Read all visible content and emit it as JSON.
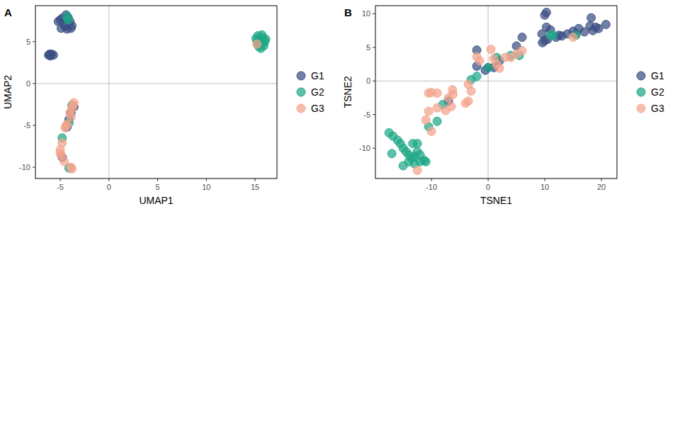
{
  "chart_data": [
    {
      "type": "scatter",
      "panel": "A",
      "x_label": "UMAP1",
      "y_label": "UMAP2",
      "xlim": [
        -7.55,
        17.25
      ],
      "ylim": [
        -11.35,
        9.3
      ],
      "xticks": [
        -5,
        0,
        5,
        10,
        15
      ],
      "yticks": [
        -10,
        -5,
        0,
        5
      ],
      "vline": 0,
      "hline": 0,
      "grid": false,
      "legend": "right",
      "marker": "circle",
      "series": [
        {
          "name": "G1",
          "color": "#3b4f84",
          "x": [
            -5.0,
            -4.8,
            -4.4,
            -4.2,
            -4.6,
            -4.9,
            -4.3,
            -3.9,
            -3.8,
            -4.0,
            -4.5,
            -5.2,
            -6.2,
            -5.9,
            -6.0,
            -5.7,
            -6.1,
            -3.6,
            -4.1,
            -4.3,
            -4.8,
            -3.9
          ],
          "values": [
            7.6,
            7.8,
            8.2,
            7.9,
            7.1,
            6.6,
            6.5,
            6.6,
            6.9,
            7.4,
            6.8,
            7.4,
            3.4,
            3.5,
            3.3,
            3.4,
            3.5,
            -2.8,
            -4.3,
            -5.2,
            -8.8,
            -3.5
          ]
        },
        {
          "name": "G2",
          "color": "#1fa887",
          "x": [
            15.3,
            15.5,
            15.8,
            15.6,
            15.2,
            16.0,
            15.4,
            15.7,
            15.9,
            15.1,
            15.6,
            16.1,
            15.3,
            15.8,
            -4.3,
            -4.2,
            -4.1,
            -3.8,
            -4.8,
            -4.1
          ],
          "values": [
            4.6,
            5.2,
            5.5,
            4.8,
            5.0,
            5.0,
            4.4,
            5.8,
            4.5,
            5.4,
            4.2,
            5.3,
            5.7,
            4.9,
            8.0,
            7.6,
            -4.7,
            -2.6,
            -6.5,
            -10.1
          ]
        },
        {
          "name": "G3",
          "color": "#f4a48c",
          "x": [
            -3.6,
            -3.8,
            -4.0,
            -3.9,
            -4.3,
            -4.5,
            -5.0,
            -5.0,
            -4.9,
            -4.6,
            -3.8,
            -3.9,
            -4.8,
            -4.4,
            -3.7,
            15.2
          ],
          "values": [
            -2.3,
            -3.0,
            -3.5,
            -4.0,
            -4.9,
            -5.3,
            -7.9,
            -8.3,
            -8.6,
            -9.3,
            -10.2,
            -10.0,
            -7.1,
            -5.0,
            -2.6,
            4.7
          ]
        }
      ]
    },
    {
      "type": "scatter",
      "panel": "B",
      "x_label": "TSNE1",
      "y_label": "TSNE2",
      "xlim": [
        -19.9,
        22.75
      ],
      "ylim": [
        -14.5,
        11.2
      ],
      "xticks": [
        -10,
        0,
        10,
        20
      ],
      "yticks": [
        -10,
        -5,
        0,
        5,
        10
      ],
      "vline": 0,
      "hline": 0,
      "grid": false,
      "legend": "right",
      "marker": "circle",
      "series": [
        {
          "name": "G1",
          "color": "#3b4f84",
          "x": [
            10.0,
            10.3,
            9.5,
            10.0,
            10.5,
            11.0,
            10.3,
            12.0,
            13.0,
            14.0,
            15.0,
            16.0,
            17.0,
            18.0,
            18.2,
            19.0,
            18.5,
            19.5,
            20.8,
            15.5,
            12.5,
            9.6,
            6.0,
            5.0,
            -2.0,
            -2.0,
            -0.5,
            1.0,
            2.0,
            -7.0,
            0.0
          ],
          "values": [
            9.8,
            10.2,
            7.0,
            6.0,
            6.2,
            7.6,
            8.0,
            6.5,
            6.7,
            7.0,
            7.4,
            7.8,
            7.3,
            8.2,
            9.4,
            8.0,
            7.5,
            7.8,
            8.4,
            7.0,
            6.8,
            5.7,
            6.5,
            5.2,
            4.6,
            2.2,
            1.6,
            2.0,
            3.0,
            -3.0,
            2.0
          ]
        },
        {
          "name": "G2",
          "color": "#1fa887",
          "x": [
            -17.5,
            -16.8,
            -16.0,
            -15.5,
            -15.0,
            -14.5,
            -14.0,
            -13.5,
            -13.0,
            -12.5,
            -12.0,
            -13.0,
            -12.0,
            -11.3,
            -11.0,
            -14.0,
            -15.0,
            -17.0,
            -13.3,
            -12.5,
            -10.5,
            -9.0,
            -8.0,
            -3.0,
            -2.0,
            0.0,
            1.5,
            4.0,
            5.5,
            11.5,
            15.5,
            11.0
          ],
          "values": [
            -7.7,
            -8.2,
            -8.8,
            -9.3,
            -10.0,
            -10.5,
            -11.0,
            -11.5,
            -11.2,
            -10.5,
            -11.0,
            -12.3,
            -12.0,
            -11.8,
            -12.0,
            -12.0,
            -12.6,
            -10.8,
            -9.3,
            -9.3,
            -6.8,
            -6.0,
            -3.5,
            0.2,
            0.7,
            2.0,
            3.5,
            3.8,
            3.8,
            6.8,
            6.8,
            6.8
          ]
        },
        {
          "name": "G3",
          "color": "#f4a48c",
          "x": [
            -10.5,
            -10.0,
            -9.0,
            -10.5,
            -9.0,
            -11.0,
            -10.0,
            -12.5,
            -7.5,
            -6.5,
            -6.2,
            -6.3,
            -4.0,
            -3.5,
            -3.0,
            -3.5,
            -2.0,
            -1.5,
            0.5,
            1.0,
            1.5,
            2.0,
            3.0,
            4.0,
            5.0,
            6.0,
            15.0,
            -7.0
          ],
          "values": [
            -1.8,
            -1.7,
            -1.8,
            -4.5,
            -4.0,
            -5.8,
            -7.5,
            -13.3,
            -4.4,
            -3.8,
            -2.0,
            -1.3,
            -3.3,
            -3.0,
            -1.5,
            -0.5,
            3.6,
            3.0,
            4.7,
            3.3,
            2.5,
            1.9,
            3.5,
            3.5,
            4.0,
            4.5,
            6.5,
            -2.5
          ]
        }
      ]
    }
  ]
}
